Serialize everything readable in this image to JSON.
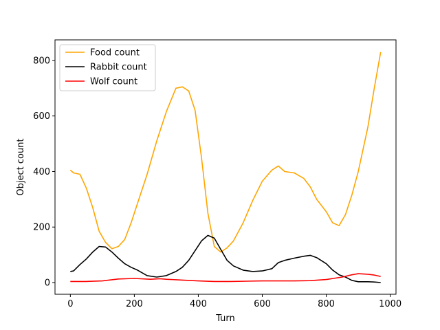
{
  "chart_data": {
    "type": "line",
    "title": "",
    "xlabel": "Turn",
    "ylabel": "Object count",
    "xlim": [
      -48,
      1018
    ],
    "ylim": [
      -42,
      874
    ],
    "xticks": [
      0,
      200,
      400,
      600,
      800,
      1000
    ],
    "xtick_labels": [
      "0",
      "200",
      "400",
      "600",
      "800",
      "1000"
    ],
    "yticks": [
      0,
      200,
      400,
      600,
      800
    ],
    "ytick_labels": [
      "0",
      "200",
      "400",
      "600",
      "800"
    ],
    "grid": false,
    "legend": "top-left",
    "series": [
      {
        "name": "Food count",
        "color": "#ffa500",
        "x": [
          0,
          10,
          30,
          50,
          70,
          90,
          110,
          130,
          150,
          170,
          190,
          210,
          240,
          270,
          300,
          330,
          350,
          370,
          390,
          410,
          430,
          450,
          470,
          490,
          510,
          540,
          570,
          600,
          630,
          650,
          670,
          700,
          730,
          750,
          770,
          800,
          820,
          840,
          860,
          880,
          900,
          930,
          950,
          970
        ],
        "y": [
          405,
          395,
          390,
          340,
          270,
          185,
          145,
          122,
          130,
          155,
          215,
          285,
          390,
          510,
          615,
          700,
          705,
          690,
          620,
          450,
          250,
          130,
          110,
          125,
          150,
          215,
          295,
          365,
          405,
          420,
          400,
          395,
          375,
          345,
          300,
          255,
          215,
          205,
          245,
          315,
          400,
          560,
          700,
          830
        ]
      },
      {
        "name": "Rabbit count",
        "color": "#000000",
        "x": [
          0,
          10,
          30,
          50,
          70,
          90,
          110,
          130,
          150,
          170,
          190,
          210,
          240,
          270,
          300,
          330,
          350,
          370,
          390,
          410,
          430,
          450,
          470,
          490,
          510,
          540,
          570,
          600,
          630,
          650,
          670,
          700,
          730,
          750,
          770,
          800,
          820,
          840,
          860,
          880,
          900,
          930,
          950,
          970
        ],
        "y": [
          40,
          42,
          65,
          85,
          110,
          130,
          128,
          110,
          88,
          68,
          55,
          45,
          25,
          20,
          25,
          40,
          55,
          80,
          115,
          150,
          170,
          160,
          120,
          80,
          60,
          45,
          40,
          42,
          50,
          72,
          80,
          88,
          95,
          98,
          90,
          68,
          45,
          28,
          20,
          8,
          3,
          3,
          2,
          0
        ]
      },
      {
        "name": "Wolf count",
        "color": "#ff0000",
        "x": [
          0,
          50,
          100,
          150,
          200,
          250,
          280,
          300,
          350,
          400,
          450,
          500,
          550,
          600,
          650,
          700,
          750,
          800,
          850,
          880,
          900,
          930,
          950,
          970
        ],
        "y": [
          4,
          4,
          6,
          13,
          15,
          12,
          14,
          12,
          9,
          6,
          4,
          4,
          5,
          6,
          6,
          6,
          7,
          11,
          20,
          28,
          32,
          30,
          27,
          22
        ]
      }
    ]
  }
}
